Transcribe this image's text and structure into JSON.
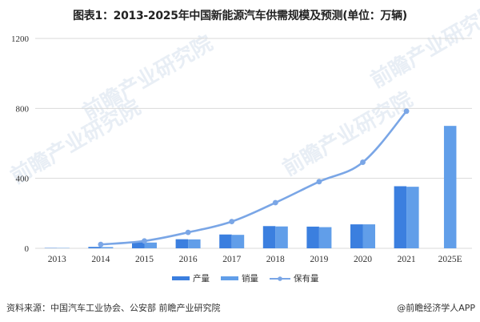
{
  "title": "图表1：2013-2025年中国新能源汽车供需规模及预测(单位：万辆)",
  "colors": {
    "production": "#3b7fdf",
    "sales": "#619ee9",
    "ownership": "#7aa6e6",
    "grid": "#d9d9d9"
  },
  "legend": {
    "production": "产量",
    "sales": "销量",
    "ownership": "保有量"
  },
  "footer": {
    "source": "资料来源：中国汽车工业协会、公安部 前瞻产业研究院",
    "credit": "@前瞻经济学人APP"
  },
  "watermark": "前瞻产业研究院",
  "chart_data": {
    "type": "bar",
    "title": "图表1：2013-2025年中国新能源汽车供需规模及预测(单位：万辆)",
    "xlabel": "",
    "ylabel": "万辆",
    "ylim": [
      0,
      1200
    ],
    "yticks": [
      0,
      400,
      800,
      1200
    ],
    "grid": true,
    "legend_position": "bottom",
    "categories": [
      "2013",
      "2014",
      "2015",
      "2016",
      "2017",
      "2018",
      "2019",
      "2020",
      "2021",
      "2025E"
    ],
    "series": [
      {
        "name": "产量",
        "type": "bar",
        "values": [
          2,
          8,
          34,
          52,
          79,
          127,
          124,
          137,
          355,
          null
        ]
      },
      {
        "name": "销量",
        "type": "bar",
        "values": [
          2,
          7,
          33,
          51,
          77,
          125,
          121,
          137,
          352,
          700
        ]
      },
      {
        "name": "保有量",
        "type": "line",
        "values": [
          null,
          22,
          42,
          91,
          153,
          261,
          381,
          492,
          784,
          null
        ]
      }
    ]
  }
}
